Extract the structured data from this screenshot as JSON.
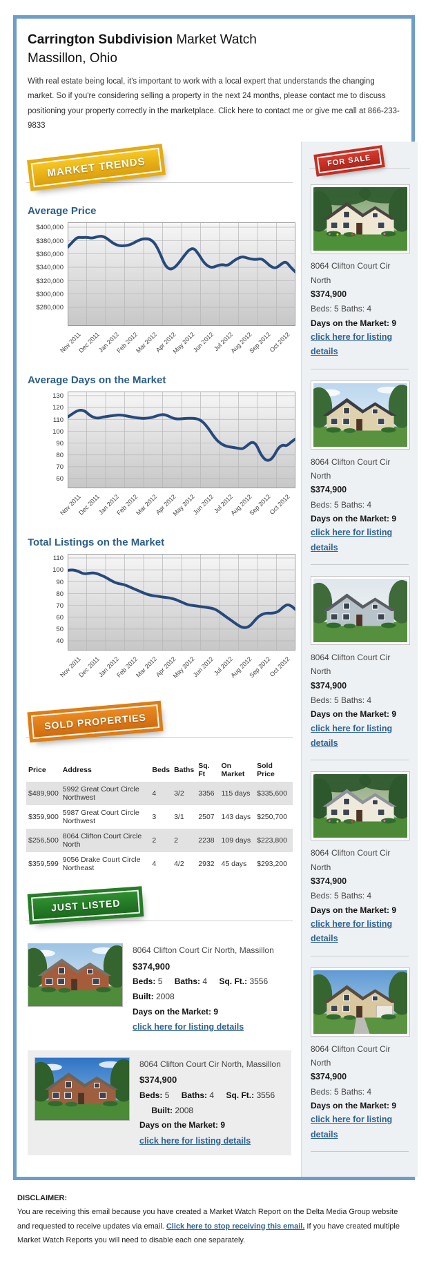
{
  "header": {
    "title_strong": "Carrington Subdivision",
    "title_normal": " Market Watch",
    "subtitle": "Massillon, Ohio",
    "intro": "With real estate being local, it's important to work with a local expert that understands the changing market. So if you're considering selling a property in the next 24 months, please contact me to discuss positioning your property correctly in the marketplace. Click here to contact me or give me call at 866-233-9833"
  },
  "badges": {
    "market_trends": "MARKET TRENDS",
    "for_sale": "FOR SALE",
    "sold_properties": "SOLD PROPERTIES",
    "just_listed": "JUST LISTED"
  },
  "chart_data": [
    {
      "type": "line",
      "title": "Average Price",
      "xlabel": "",
      "ylabel": "",
      "x_labels": [
        "Nov 2011",
        "Dec 2011",
        "Jan 2012",
        "Feb 2012",
        "Mar 2012",
        "Apr 2012",
        "May 2012",
        "Jun 2012",
        "Jul 2012",
        "Aug 2012",
        "Sep 2012",
        "Oct 2012"
      ],
      "y_tick_labels": [
        "$400,000",
        "$380,000",
        "$360,000",
        "$340,000",
        "$320,000",
        "$300,000",
        "$280,000"
      ],
      "ylim": [
        280000,
        400000
      ],
      "grid": true,
      "line_color": "#27497c",
      "values": [
        370000,
        378000,
        385000,
        384500,
        385000,
        383500,
        385500,
        387000,
        384000,
        378000,
        373500,
        372000,
        372500,
        374000,
        378000,
        381500,
        383000,
        382000,
        376000,
        362000,
        344000,
        336500,
        339000,
        347000,
        357000,
        366000,
        369000,
        360000,
        348000,
        341000,
        339500,
        343000,
        344000,
        342500,
        348000,
        353000,
        356000,
        354000,
        352000,
        351500,
        353000,
        347000,
        340500,
        338500,
        344500,
        349000,
        340000,
        333000
      ]
    },
    {
      "type": "line",
      "title": "Average Days on the Market",
      "xlabel": "",
      "ylabel": "",
      "x_labels": [
        "Nov 2011",
        "Dec 2011",
        "Jan 2012",
        "Feb 2012",
        "Mar 2012",
        "Apr 2012",
        "May 2012",
        "Jun 2012",
        "Jul 2012",
        "Aug 2012",
        "Sep 2012",
        "Oct 2012"
      ],
      "y_tick_labels": [
        "130",
        "120",
        "110",
        "100",
        "90",
        "80",
        "70",
        "60"
      ],
      "ylim": [
        60,
        130
      ],
      "grid": true,
      "line_color": "#27497c",
      "values": [
        112,
        114.5,
        117,
        118,
        117,
        113.5,
        111.5,
        111,
        112,
        112.5,
        113,
        113.5,
        113.8,
        113.2,
        112.5,
        111.8,
        111.2,
        110.8,
        111,
        111.5,
        112.5,
        113.8,
        114.2,
        112.8,
        111,
        110.3,
        110.5,
        110.8,
        111,
        110.8,
        110,
        107.5,
        103,
        97.5,
        92.5,
        89.5,
        87.5,
        86.8,
        86.2,
        85.5,
        85,
        88,
        91,
        89.5,
        81,
        76,
        75,
        78.5,
        85.5,
        88.5,
        87.5,
        91,
        93.5
      ]
    },
    {
      "type": "line",
      "title": "Total Listings on the Market",
      "xlabel": "",
      "ylabel": "",
      "x_labels": [
        "Nov 2011",
        "Dec 2011",
        "Jan 2012",
        "Feb 2012",
        "Mar 2012",
        "Apr 2012",
        "May 2012",
        "Jun 2012",
        "Jul 2012",
        "Aug 2012",
        "Sep 2012",
        "Oct 2012"
      ],
      "y_tick_labels": [
        "110",
        "100",
        "90",
        "80",
        "70",
        "60",
        "50",
        "40"
      ],
      "ylim": [
        40,
        110
      ],
      "grid": true,
      "line_color": "#27497c",
      "values": [
        99.5,
        100,
        99.5,
        98,
        96.5,
        97,
        97.5,
        97,
        95.5,
        94,
        92,
        90,
        88.5,
        88,
        87,
        85.5,
        84,
        82.5,
        81,
        79.5,
        78.5,
        78,
        77.5,
        77,
        76.5,
        76,
        75,
        73.5,
        72,
        70.5,
        70,
        69.5,
        69,
        68.5,
        68,
        67.5,
        66,
        63.5,
        61,
        58.5,
        56,
        53.5,
        51.5,
        51,
        52.5,
        56.5,
        60.5,
        62.5,
        63.5,
        63.3,
        63.6,
        65,
        68.5,
        70.8,
        69.5,
        66.5
      ]
    }
  ],
  "sold_table": {
    "headers": [
      "Price",
      "Address",
      "Beds",
      "Baths",
      "Sq. Ft",
      "On Market",
      "Sold Price"
    ],
    "rows": [
      {
        "price": "$489,900",
        "address": "5992 Great Court Circle Northwest",
        "beds": "4",
        "baths": "3/2",
        "sqft": "3356",
        "on_market": "115 days",
        "sold_price": "$335,600"
      },
      {
        "price": "$359,900",
        "address": "5987 Great Court Circle Northwest",
        "beds": "3",
        "baths": "3/1",
        "sqft": "2507",
        "on_market": "143 days",
        "sold_price": "$250,700"
      },
      {
        "price": "$256,500",
        "address": "8064 Clifton Court Circle North",
        "beds": "2",
        "baths": "2",
        "sqft": "2238",
        "on_market": "109 days",
        "sold_price": "$223,800"
      },
      {
        "price": "$359,599",
        "address": "9056 Drake Court Circle Northeast",
        "beds": "4",
        "baths": "4/2",
        "sqft": "2932",
        "on_market": "45 days",
        "sold_price": "$293,200"
      }
    ]
  },
  "sidebar": {
    "listings": [
      {
        "photo": "house-victorian-trees",
        "address": "8064 Clifton Court Cir North",
        "price": "$374,900",
        "beds_baths": "Beds: 5 Baths: 4",
        "days": "Days on the Market: 9",
        "link": "click here for listing details"
      },
      {
        "photo": "house-tan-colonial",
        "address": "8064 Clifton Court Cir North",
        "price": "$374,900",
        "beds_baths": "Beds: 5 Baths: 4",
        "days": "Days on the Market: 9",
        "link": "click here for listing details"
      },
      {
        "photo": "house-gray-craftsman",
        "address": "8064 Clifton Court Cir North",
        "price": "$374,900",
        "beds_baths": "Beds: 5 Baths: 4",
        "days": "Days on the Market: 9",
        "link": "click here for listing details"
      },
      {
        "photo": "house-white-estate",
        "address": "8064 Clifton Court Cir North",
        "price": "$374,900",
        "beds_baths": "Beds: 5 Baths: 4",
        "days": "Days on the Market: 9",
        "link": "click here for listing details"
      },
      {
        "photo": "house-tan-garage",
        "address": "8064 Clifton Court Cir North",
        "price": "$374,900",
        "beds_baths": "Beds: 5 Baths: 4",
        "days": "Days on the Market: 9",
        "link": "click here for listing details"
      }
    ]
  },
  "just_listed_items": [
    {
      "photo": "house-brick-clouds",
      "address": "8064 Clifton Court Cir North, Massillon",
      "price": "$374,900",
      "beds_label": "Beds:",
      "beds": "5",
      "baths_label": "Baths:",
      "baths": "4",
      "sqft_label": "Sq. Ft.:",
      "sqft": "3556",
      "built_label": "Built:",
      "built": "2008",
      "days": "Days on the Market: 9",
      "link": "click here for listing details"
    },
    {
      "photo": "house-brick-bluesky",
      "address": "8064 Clifton Court Cir North, Massillon",
      "price": "$374,900",
      "beds_label": "Beds:",
      "beds": "5",
      "baths_label": "Baths:",
      "baths": "4",
      "sqft_label": "Sq. Ft.:",
      "sqft": "3556",
      "built_label": "Built:",
      "built": "2008",
      "days": "Days on the Market: 9",
      "link": "click here for listing details"
    }
  ],
  "disclaimer": {
    "heading": "DISCLAIMER:",
    "text_before": "You are receiving this email because you have created a Market Watch Report on the Delta Media Group website and requested to receive updates via email. ",
    "link": "Click here to stop receiving this email.",
    "text_after": " If you have created multiple Market Watch Reports you will need to disable each one separately."
  },
  "colors": {
    "frame_blue": "#6e9dc9",
    "heading_blue": "#2b5d8a",
    "link_blue": "#2e6293",
    "chart_line": "#27497c",
    "badge_gold": "#e5ab12",
    "badge_red": "#c42f23",
    "badge_orange": "#dd7d16",
    "badge_green": "#267c27"
  }
}
